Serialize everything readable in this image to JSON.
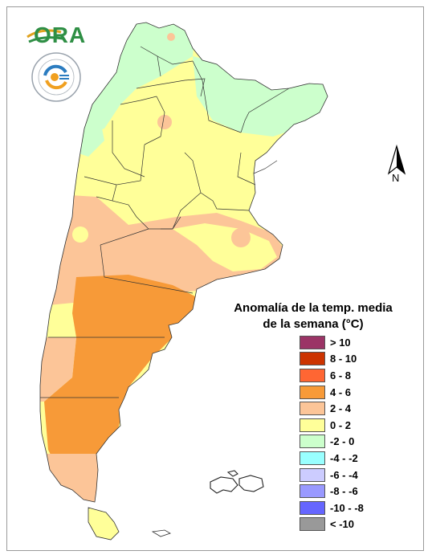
{
  "logos": {
    "ora": "ORA",
    "seal_icon": "smn-seal-icon"
  },
  "north_arrow": {
    "label": "N"
  },
  "legend": {
    "title_line1": "Anomalía de la temp. media",
    "title_line2": "de la semana (°C)",
    "items": [
      {
        "label": "> 10",
        "color": "#9b3466"
      },
      {
        "label": "8 - 10",
        "color": "#cc3300"
      },
      {
        "label": "6 - 8",
        "color": "#ff6633"
      },
      {
        "label": "4 - 6",
        "color": "#f79a38"
      },
      {
        "label": "2 - 4",
        "color": "#fcc598"
      },
      {
        "label": "0 - 2",
        "color": "#ffff99"
      },
      {
        "label": "-2 - 0",
        "color": "#ccffcc"
      },
      {
        "label": "-4 - -2",
        "color": "#99ffff"
      },
      {
        "label": "-6 - -4",
        "color": "#ccccff"
      },
      {
        "label": "-8 - -6",
        "color": "#9999ff"
      },
      {
        "label": "-10 - -8",
        "color": "#6666ff"
      },
      {
        "label": "< -10",
        "color": "#999999"
      }
    ]
  }
}
